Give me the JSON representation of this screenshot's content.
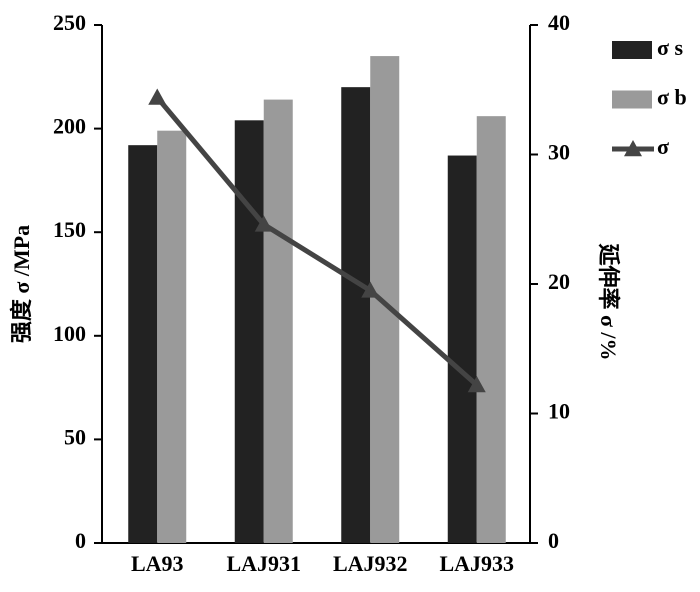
{
  "chart_data": {
    "type": "bar",
    "categories": [
      "LA93",
      "LAJ931",
      "LAJ932",
      "LAJ933"
    ],
    "y_label": "强度 σ /MPa",
    "y2_label": "延伸率 σ /%",
    "ylim": [
      0,
      250
    ],
    "yticks": [
      0,
      50,
      100,
      150,
      200,
      250
    ],
    "y2lim": [
      0,
      40
    ],
    "y2ticks": [
      0,
      10,
      20,
      30,
      40
    ],
    "grid": false,
    "legend": "right",
    "series": [
      {
        "name": "σ s",
        "color": "#222222",
        "type": "bar",
        "values": [
          192,
          204,
          220,
          187
        ]
      },
      {
        "name": "σ b",
        "color": "#9a9a9a",
        "type": "bar",
        "values": [
          199,
          214,
          235,
          206
        ]
      },
      {
        "name": "σ",
        "color": "#444444",
        "type": "line",
        "axis": "y2",
        "values": [
          34.4,
          24.6,
          19.5,
          12.2
        ]
      }
    ]
  }
}
